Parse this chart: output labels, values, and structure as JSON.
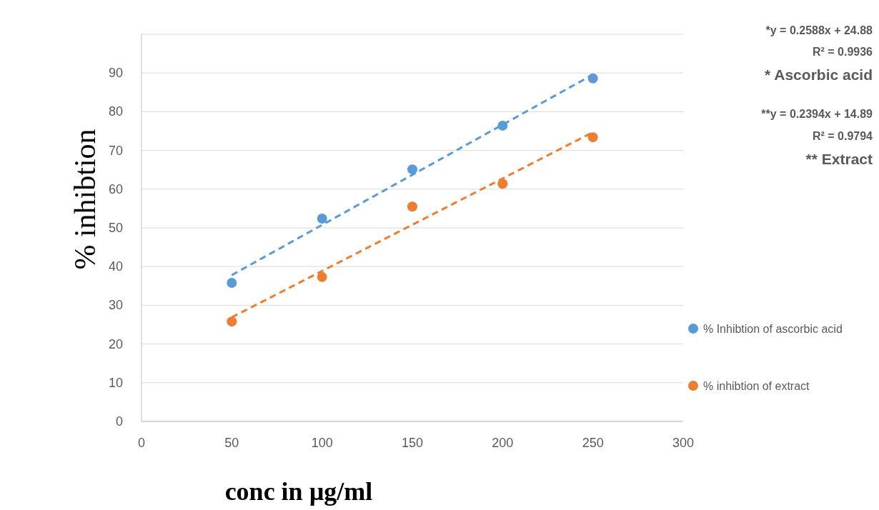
{
  "chart_data": {
    "type": "scatter",
    "xlabel": "conc in µg/ml",
    "ylabel": "% inhibtion",
    "xlim": [
      0,
      300
    ],
    "xticks": [
      0,
      50,
      100,
      150,
      200,
      250,
      300
    ],
    "ylim": [
      0,
      100
    ],
    "yticks": [
      0,
      10,
      20,
      30,
      40,
      50,
      60,
      70,
      80,
      90
    ],
    "grid": "y",
    "legend": "right",
    "marker": "circle",
    "series": [
      {
        "name": "% Inhibtion of ascorbic acid",
        "color": "#5b9bd5",
        "x": [
          50,
          100,
          150,
          200,
          250
        ],
        "values": [
          35.8,
          52.4,
          65.1,
          76.4,
          88.6
        ]
      },
      {
        "name": "% inhibtion of extract",
        "color": "#ed7d31",
        "x": [
          50,
          100,
          150,
          200,
          250
        ],
        "values": [
          25.8,
          37.3,
          55.5,
          61.4,
          73.4
        ]
      },
      {
        "type": "line",
        "color": "#5b9bd5",
        "line_style": "dashed",
        "marker": "none",
        "x": [
          50,
          250
        ],
        "values": [
          37.8,
          89.6
        ]
      },
      {
        "type": "line",
        "color": "#ed7d31",
        "line_style": "dashed",
        "marker": "none",
        "x": [
          50,
          250
        ],
        "values": [
          26.9,
          74.7
        ]
      }
    ],
    "annotations": [
      "*y = 0.2588x + 24.88",
      "R² = 0.9936",
      "* Ascorbic acid",
      "**y = 0.2394x + 14.89",
      "R² = 0.9794",
      "** Extract"
    ]
  }
}
